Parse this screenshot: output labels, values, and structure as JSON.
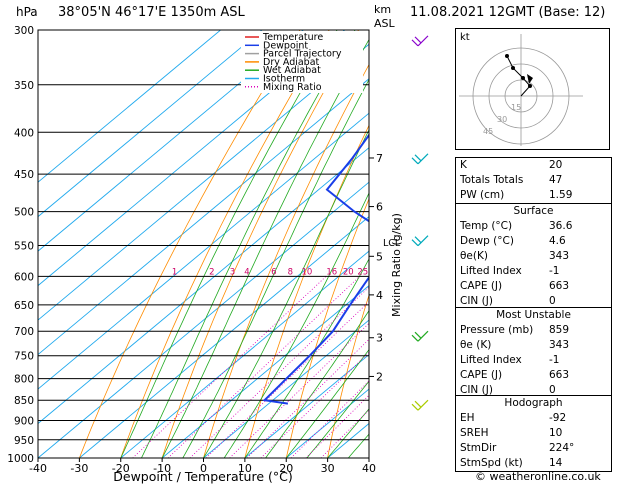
{
  "header": {
    "station": "38°05'N  46°17'E  1350m  ASL",
    "date": "11.08.2021  12GMT  (Base: 12)",
    "unit_left": "hPa",
    "unit_right_1": "km",
    "unit_right_2": "ASL",
    "credit": "© weatheronline.co.uk"
  },
  "legend": [
    {
      "label": "Temperature",
      "color": "#e02020",
      "dash": ""
    },
    {
      "label": "Dewpoint",
      "color": "#1a3ee8",
      "dash": ""
    },
    {
      "label": "Parcel Trajectory",
      "color": "#a0a0a0",
      "dash": ""
    },
    {
      "label": "Dry Adiabat",
      "color": "#ff8c00",
      "dash": ""
    },
    {
      "label": "Wet Adiabat",
      "color": "#22aa22",
      "dash": ""
    },
    {
      "label": "Isotherm",
      "color": "#22aaee",
      "dash": ""
    },
    {
      "label": "Mixing Ratio",
      "color": "#dd00bb",
      "dash": "1,2"
    }
  ],
  "chart_data": {
    "type": "line",
    "xlabel": "Dewpoint / Temperature (°C)",
    "ylabel_right": "Mixing Ratio (g/kg)",
    "x_ticks": [
      "-40",
      "-30",
      "-20",
      "-10",
      "0",
      "10",
      "20",
      "30",
      "40"
    ],
    "xlim": [
      -40,
      40
    ],
    "pressure_levels": [
      "300",
      "350",
      "400",
      "450",
      "500",
      "550",
      "600",
      "650",
      "700",
      "750",
      "800",
      "850",
      "900",
      "950",
      "1000"
    ],
    "ylim": [
      1000,
      300
    ],
    "y_scale": "log",
    "km_ticks": [
      {
        "label": "7",
        "p": 430
      },
      {
        "label": "6",
        "p": 493
      },
      {
        "label": "5",
        "p": 567
      },
      {
        "label": "4",
        "p": 632
      },
      {
        "label": "3",
        "p": 713
      },
      {
        "label": "2",
        "p": 795
      },
      {
        "label": "LCL",
        "p": 545
      }
    ],
    "mixing_ratio_labels": [
      {
        "label": "1",
        "x": -7
      },
      {
        "label": "2",
        "x": 2
      },
      {
        "label": "3",
        "x": 7
      },
      {
        "label": "4",
        "x": 10.5
      },
      {
        "label": "6",
        "x": 17
      },
      {
        "label": "8",
        "x": 21
      },
      {
        "label": "10",
        "x": 25
      },
      {
        "label": "16",
        "x": 31
      },
      {
        "label": "20",
        "x": 35
      },
      {
        "label": "25",
        "x": 38.5
      }
    ],
    "series": [
      {
        "name": "Temperature",
        "color": "#e02020",
        "points": [
          [
            855,
            36.6
          ],
          [
            800,
            31.5
          ],
          [
            750,
            26.5
          ],
          [
            700,
            21.5
          ],
          [
            650,
            16.5
          ],
          [
            600,
            11.2
          ],
          [
            550,
            5.8
          ],
          [
            500,
            0.3
          ],
          [
            450,
            -6.5
          ],
          [
            400,
            -14.5
          ],
          [
            350,
            -23.5
          ],
          [
            300,
            -34
          ]
        ]
      },
      {
        "name": "Dewpoint",
        "color": "#1a3ee8",
        "points": [
          [
            858,
            4.6
          ],
          [
            850,
            -2
          ],
          [
            800,
            -3
          ],
          [
            750,
            -4
          ],
          [
            700,
            -5.5
          ],
          [
            650,
            -9
          ],
          [
            600,
            -12.5
          ],
          [
            550,
            -16.5
          ],
          [
            540,
            -17
          ],
          [
            500,
            -35
          ],
          [
            470,
            -48
          ],
          [
            430,
            -51
          ],
          [
            400,
            -54
          ],
          [
            350,
            -59
          ],
          [
            300,
            -67
          ]
        ]
      },
      {
        "name": "Parcel Trajectory",
        "color": "#a0a0a0",
        "points": [
          [
            855,
            36.6
          ],
          [
            800,
            31
          ],
          [
            750,
            26
          ],
          [
            700,
            21
          ],
          [
            650,
            16.5
          ],
          [
            600,
            12.4
          ],
          [
            550,
            6.5
          ],
          [
            500,
            1.2
          ],
          [
            450,
            -4.5
          ],
          [
            400,
            -11
          ],
          [
            350,
            -20.5
          ],
          [
            300,
            -29
          ]
        ]
      }
    ]
  },
  "hodograph": {
    "label": "kt",
    "ring_labels": [
      "15",
      "30",
      "45"
    ]
  },
  "indices": {
    "rows": [
      {
        "label": "K",
        "value": "20"
      },
      {
        "label": "Totals Totals",
        "value": "47"
      },
      {
        "label": "PW (cm)",
        "value": "1.59"
      }
    ]
  },
  "surface": {
    "title": "Surface",
    "rows": [
      {
        "label": "Temp (°C)",
        "value": "36.6"
      },
      {
        "label": "Dewp (°C)",
        "value": "4.6"
      },
      {
        "label": "θe(K)",
        "value": "343"
      },
      {
        "label": "Lifted Index",
        "value": "-1"
      },
      {
        "label": "CAPE (J)",
        "value": "663"
      },
      {
        "label": "CIN (J)",
        "value": "0"
      }
    ]
  },
  "most_unstable": {
    "title": "Most Unstable",
    "rows": [
      {
        "label": "Pressure (mb)",
        "value": "859"
      },
      {
        "label": "θe (K)",
        "value": "343"
      },
      {
        "label": "Lifted Index",
        "value": "-1"
      },
      {
        "label": "CAPE (J)",
        "value": "663"
      },
      {
        "label": "CIN (J)",
        "value": "0"
      }
    ]
  },
  "hodograph_table": {
    "title": "Hodograph",
    "rows": [
      {
        "label": "EH",
        "value": "-92"
      },
      {
        "label": "SREH",
        "value": "10"
      },
      {
        "label": "StmDir",
        "value": "224°"
      },
      {
        "label": "StmSpd (kt)",
        "value": "14"
      }
    ]
  }
}
